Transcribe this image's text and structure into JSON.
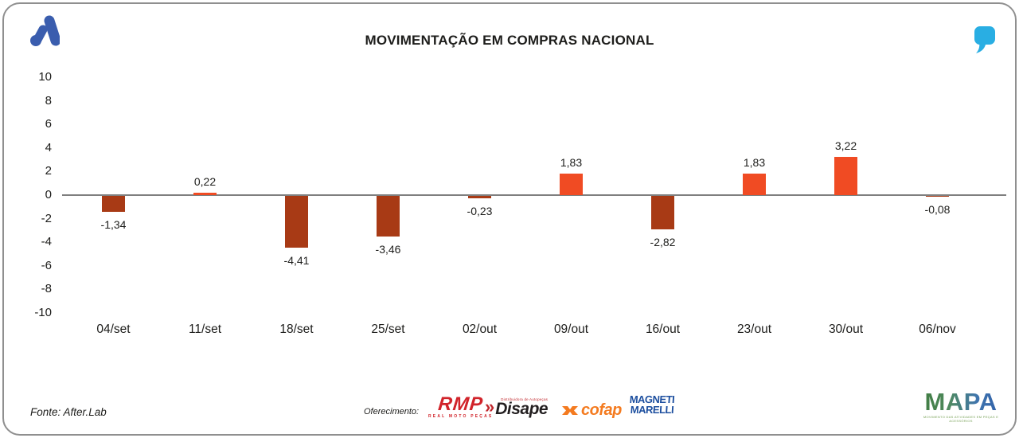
{
  "header": {
    "title": "MOVIMENTAÇÃO EM COMPRAS NACIONAL"
  },
  "colors": {
    "positive_bar": "#f04b23",
    "negative_bar": "#a83a15",
    "brand_blue": "#3a5dae",
    "quote_cyan": "#29aee3",
    "axis_text": "#1d1d1b",
    "zero_line": "#7f7f7f"
  },
  "chart_data": {
    "type": "bar",
    "title": "MOVIMENTAÇÃO EM COMPRAS NACIONAL",
    "categories": [
      "04/set",
      "11/set",
      "18/set",
      "25/set",
      "02/out",
      "09/out",
      "16/out",
      "23/out",
      "30/out",
      "06/nov"
    ],
    "values": [
      -1.34,
      0.22,
      -4.41,
      -3.46,
      -0.23,
      1.83,
      -2.82,
      1.83,
      3.22,
      -0.08
    ],
    "value_labels": [
      "-1,34",
      "0,22",
      "-4,41",
      "-3,46",
      "-0,23",
      "1,83",
      "-2,82",
      "1,83",
      "3,22",
      "-0,08"
    ],
    "ylim": [
      -10,
      10
    ],
    "yticks": [
      10,
      8,
      6,
      4,
      2,
      0,
      -2,
      -4,
      -6,
      -8,
      -10
    ],
    "grid": false,
    "legend": false,
    "positive_color": "#f04b23",
    "negative_color": "#a83a15"
  },
  "footer": {
    "source": "Fonte: After.Lab",
    "offering_label": "Oferecimento:",
    "sponsors": {
      "rmp": {
        "name": "RMP",
        "tagline": "REAL MOTO PEÇAS"
      },
      "disape": {
        "chevrons": "»",
        "name": "Disape",
        "tagline": "Distribuidora de Autopeças"
      },
      "cofap": {
        "name": "cofap"
      },
      "magneti": {
        "line1": "MAGNETI",
        "line2": "MARELLI"
      }
    },
    "mapa": {
      "name": "MAPA",
      "tagline": "MOVIMENTO DAS ATIVIDADES EM PEÇAS E ACESSÓRIOS"
    }
  }
}
